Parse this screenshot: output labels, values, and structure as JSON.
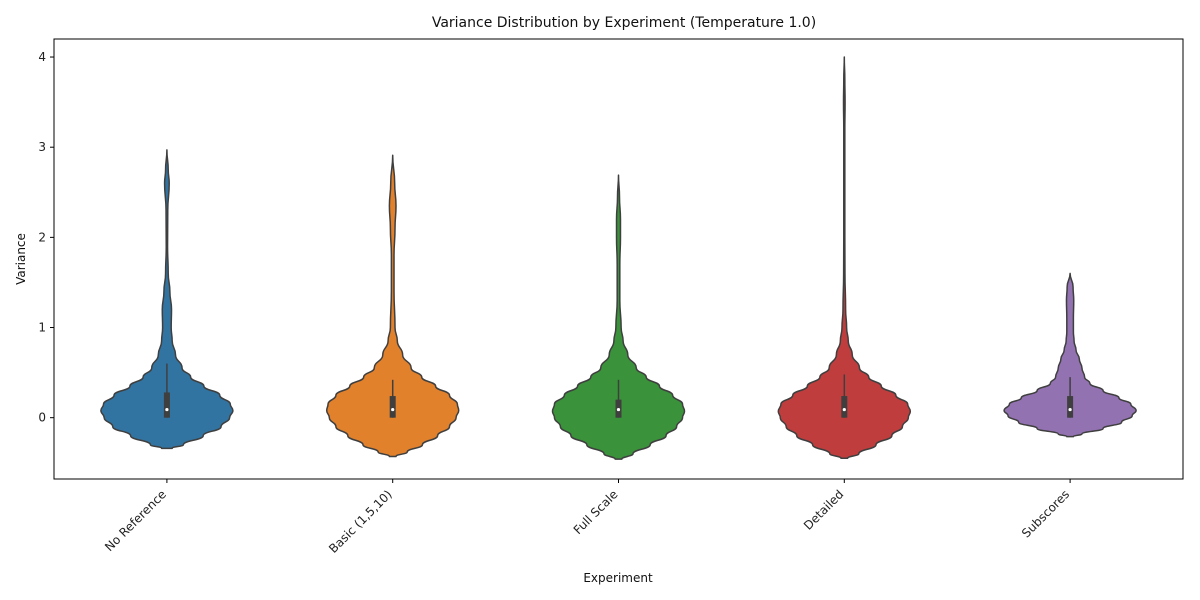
{
  "chart_data": {
    "type": "violin",
    "title": "Variance Distribution by Experiment (Temperature 1.0)",
    "xlabel": "Experiment",
    "ylabel": "Variance",
    "ylim": [
      -0.68,
      4.2
    ],
    "yticks": [
      0,
      1,
      2,
      3,
      4
    ],
    "grid": false,
    "legend": "none",
    "categories": [
      "No Reference",
      "Basic (1,5,10)",
      "Full Scale",
      "Detailed",
      "Subscores"
    ],
    "series": [
      {
        "category": "No Reference",
        "color": "#3274a1",
        "box": {
          "q1": 0.0,
          "median": 0.09,
          "q3": 0.28,
          "whisker_low": 0.0,
          "whisker_high": 0.6
        },
        "density_profile": [
          [
            -0.34,
            0.08
          ],
          [
            -0.3,
            0.25
          ],
          [
            -0.2,
            0.55
          ],
          [
            -0.1,
            0.82
          ],
          [
            0.0,
            0.95
          ],
          [
            0.08,
            1.0
          ],
          [
            0.15,
            0.96
          ],
          [
            0.25,
            0.8
          ],
          [
            0.35,
            0.56
          ],
          [
            0.45,
            0.36
          ],
          [
            0.55,
            0.23
          ],
          [
            0.7,
            0.13
          ],
          [
            0.85,
            0.08
          ],
          [
            1.0,
            0.065
          ],
          [
            1.2,
            0.07
          ],
          [
            1.4,
            0.045
          ],
          [
            1.6,
            0.02
          ],
          [
            1.9,
            0.01
          ],
          [
            2.3,
            0.013
          ],
          [
            2.6,
            0.035
          ],
          [
            2.75,
            0.02
          ],
          [
            2.97,
            0.0
          ]
        ]
      },
      {
        "category": "Basic (1,5,10)",
        "color": "#e1812c",
        "box": {
          "q1": 0.0,
          "median": 0.09,
          "q3": 0.24,
          "whisker_low": 0.0,
          "whisker_high": 0.42
        },
        "density_profile": [
          [
            -0.43,
            0.05
          ],
          [
            -0.38,
            0.22
          ],
          [
            -0.3,
            0.45
          ],
          [
            -0.2,
            0.68
          ],
          [
            -0.1,
            0.86
          ],
          [
            0.0,
            0.96
          ],
          [
            0.08,
            1.0
          ],
          [
            0.15,
            0.98
          ],
          [
            0.25,
            0.86
          ],
          [
            0.35,
            0.65
          ],
          [
            0.45,
            0.44
          ],
          [
            0.55,
            0.28
          ],
          [
            0.7,
            0.15
          ],
          [
            0.85,
            0.07
          ],
          [
            1.0,
            0.035
          ],
          [
            1.4,
            0.02
          ],
          [
            1.8,
            0.02
          ],
          [
            2.1,
            0.035
          ],
          [
            2.35,
            0.05
          ],
          [
            2.6,
            0.03
          ],
          [
            2.91,
            0.0
          ]
        ]
      },
      {
        "category": "Full Scale",
        "color": "#3a923a",
        "box": {
          "q1": 0.0,
          "median": 0.09,
          "q3": 0.2,
          "whisker_low": 0.0,
          "whisker_high": 0.42
        },
        "density_profile": [
          [
            -0.46,
            0.05
          ],
          [
            -0.4,
            0.22
          ],
          [
            -0.3,
            0.48
          ],
          [
            -0.2,
            0.72
          ],
          [
            -0.1,
            0.88
          ],
          [
            0.0,
            0.97
          ],
          [
            0.07,
            1.0
          ],
          [
            0.15,
            0.97
          ],
          [
            0.25,
            0.82
          ],
          [
            0.35,
            0.62
          ],
          [
            0.45,
            0.42
          ],
          [
            0.55,
            0.27
          ],
          [
            0.7,
            0.14
          ],
          [
            0.85,
            0.07
          ],
          [
            1.0,
            0.04
          ],
          [
            1.3,
            0.02
          ],
          [
            1.7,
            0.02
          ],
          [
            2.0,
            0.03
          ],
          [
            2.2,
            0.03
          ],
          [
            2.45,
            0.015
          ],
          [
            2.69,
            0.0
          ]
        ]
      },
      {
        "category": "Detailed",
        "color": "#c03d3e",
        "box": {
          "q1": 0.0,
          "median": 0.09,
          "q3": 0.24,
          "whisker_low": 0.0,
          "whisker_high": 0.48
        },
        "density_profile": [
          [
            -0.45,
            0.05
          ],
          [
            -0.4,
            0.22
          ],
          [
            -0.3,
            0.48
          ],
          [
            -0.2,
            0.72
          ],
          [
            -0.1,
            0.88
          ],
          [
            0.0,
            0.97
          ],
          [
            0.07,
            1.0
          ],
          [
            0.15,
            0.96
          ],
          [
            0.25,
            0.78
          ],
          [
            0.35,
            0.56
          ],
          [
            0.45,
            0.37
          ],
          [
            0.55,
            0.23
          ],
          [
            0.7,
            0.12
          ],
          [
            0.85,
            0.06
          ],
          [
            1.0,
            0.035
          ],
          [
            1.2,
            0.02
          ],
          [
            1.6,
            0.01
          ],
          [
            2.0,
            0.008
          ],
          [
            2.6,
            0.008
          ],
          [
            3.2,
            0.008
          ],
          [
            3.5,
            0.012
          ],
          [
            3.75,
            0.008
          ],
          [
            4.0,
            0.0
          ]
        ]
      },
      {
        "category": "Subscores",
        "color": "#9372b2",
        "box": {
          "q1": 0.0,
          "median": 0.09,
          "q3": 0.24,
          "whisker_low": 0.0,
          "whisker_high": 0.45
        },
        "density_profile": [
          [
            -0.21,
            0.05
          ],
          [
            -0.18,
            0.18
          ],
          [
            -0.12,
            0.5
          ],
          [
            -0.05,
            0.78
          ],
          [
            0.02,
            0.94
          ],
          [
            0.08,
            1.0
          ],
          [
            0.15,
            0.92
          ],
          [
            0.22,
            0.74
          ],
          [
            0.3,
            0.5
          ],
          [
            0.38,
            0.3
          ],
          [
            0.45,
            0.22
          ],
          [
            0.55,
            0.18
          ],
          [
            0.65,
            0.14
          ],
          [
            0.75,
            0.09
          ],
          [
            0.85,
            0.06
          ],
          [
            0.95,
            0.05
          ],
          [
            1.1,
            0.05
          ],
          [
            1.3,
            0.055
          ],
          [
            1.45,
            0.045
          ],
          [
            1.6,
            0.0
          ]
        ]
      }
    ]
  }
}
